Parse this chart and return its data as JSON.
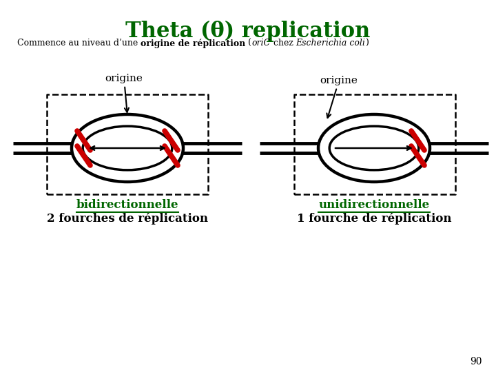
{
  "title": "Theta (θ) replication",
  "title_color": "#006600",
  "title_fontsize": 22,
  "bg_color": "#ffffff",
  "black": "#000000",
  "red": "#cc0000",
  "green": "#006600",
  "page_num": "90",
  "left_green_label": "bidirectionnelle",
  "left_black_label": "2 fourches de réplication",
  "right_green_label": "unidirectionnelle",
  "right_black_label": "1 fourche de réplication",
  "origine_label": "origine",
  "subtitle_parts": [
    [
      "Commence au niveau d’une ",
      "normal",
      "normal"
    ],
    [
      "origine de réplication",
      "bold",
      "normal"
    ],
    [
      " (",
      "normal",
      "normal"
    ],
    [
      "oriC",
      "normal",
      "italic"
    ],
    [
      " chez ",
      "normal",
      "normal"
    ],
    [
      "Escherichia coli",
      "normal",
      "italic"
    ],
    [
      ")",
      "normal",
      "normal"
    ]
  ]
}
